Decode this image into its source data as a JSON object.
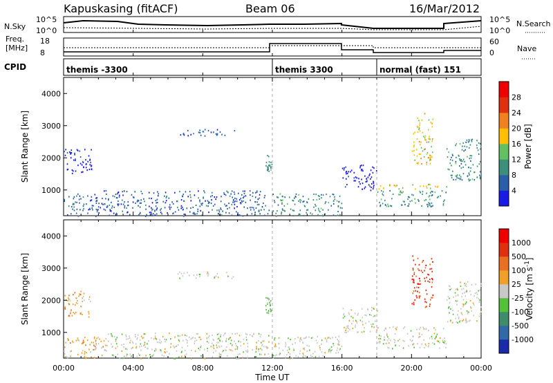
{
  "header": {
    "station": "Kapuskasing (fitACF)",
    "beam": "Beam 06",
    "date": "16/Mar/2012"
  },
  "noise_panel": {
    "left_label": "N.Sky",
    "left_ticks": [
      "10^5",
      "10^0"
    ],
    "right_label": "N.Search",
    "right_ticks": [
      "10^5",
      "10^0"
    ]
  },
  "freq_panel": {
    "left_label_1": "Freq.",
    "left_label_2": "[MHz]",
    "left_ticks": [
      "18",
      "8"
    ],
    "right_label": "Nave",
    "right_ticks": [
      "60",
      "0"
    ]
  },
  "cpid_panel": {
    "label": "CPID",
    "segments": [
      {
        "text": "themis -3300",
        "start_hour": 0.0
      },
      {
        "text": "themis 3300",
        "start_hour": 12.0
      },
      {
        "text": "normal (fast) 151",
        "start_hour": 18.0
      }
    ]
  },
  "time_axis": {
    "label": "Time UT",
    "ticks": [
      "00:00",
      "04:00",
      "08:00",
      "12:00",
      "16:00",
      "20:00",
      "00:00"
    ]
  },
  "power_panel": {
    "ylabel": "Slant Range [km]",
    "yticks": [
      "1000",
      "2000",
      "3000",
      "4000"
    ],
    "colorbar_label": "Power [dB]",
    "colorbar_ticks": [
      "4",
      "8",
      "12",
      "16",
      "20",
      "24",
      "28"
    ],
    "colors": [
      "#1a1ae6",
      "#2a5fa8",
      "#3c8f7a",
      "#62c060",
      "#ffc000",
      "#f08020",
      "#e03010",
      "#ee0000"
    ]
  },
  "velocity_panel": {
    "ylabel": "Slant Range [km]",
    "yticks": [
      "1000",
      "2000",
      "3000",
      "4000"
    ],
    "colorbar_label": "Velocity [m s",
    "colorbar_sup": "-1",
    "colorbar_ticks": [
      "1000",
      "500",
      "100",
      "25",
      "-25",
      "-100",
      "-500",
      "-1000"
    ],
    "colors": [
      "#1a2aa8",
      "#2f6aa6",
      "#3f8c6a",
      "#55c03a",
      "#c8c8c8",
      "#f0a028",
      "#e87020",
      "#e03010",
      "#ee0000"
    ]
  },
  "chart_data": {
    "type": "heatmap",
    "x_unit": "hours UT",
    "xlim": [
      0,
      24
    ],
    "ylim": [
      200,
      4500
    ],
    "mode_change_hours": [
      12,
      18
    ],
    "regions": [
      {
        "t0": 0.0,
        "t1": 2.3,
        "r0": 200,
        "r1": 900,
        "power_bin": 1,
        "velocity_bin": 5
      },
      {
        "t0": 0.0,
        "t1": 1.6,
        "r0": 1500,
        "r1": 2300,
        "power_bin": 0,
        "velocity_bin": 5
      },
      {
        "t0": 2.3,
        "t1": 11.8,
        "r0": 200,
        "r1": 1000,
        "power_bin": 1,
        "velocity_bin": 4
      },
      {
        "t0": 6.5,
        "t1": 9.8,
        "r0": 2700,
        "r1": 2900,
        "power_bin": 1,
        "velocity_bin": 4
      },
      {
        "t0": 11.6,
        "t1": 11.95,
        "r0": 1600,
        "r1": 2100,
        "power_bin": 2,
        "velocity_bin": 3
      },
      {
        "t0": 12.0,
        "t1": 16.0,
        "r0": 200,
        "r1": 900,
        "power_bin": 2,
        "velocity_bin": 4
      },
      {
        "t0": 16.0,
        "t1": 18.0,
        "r0": 1000,
        "r1": 1800,
        "power_bin": 0,
        "velocity_bin": 4
      },
      {
        "t0": 18.0,
        "t1": 22.0,
        "r0": 1050,
        "r1": 1200,
        "power_bin": 4,
        "velocity_bin": 4
      },
      {
        "t0": 18.0,
        "t1": 22.0,
        "r0": 500,
        "r1": 1000,
        "power_bin": 2,
        "velocity_bin": 4
      },
      {
        "t0": 20.0,
        "t1": 21.2,
        "r0": 1800,
        "r1": 3400,
        "power_bin": 4,
        "velocity_bin": 7
      },
      {
        "t0": 22.0,
        "t1": 24.0,
        "r0": 1300,
        "r1": 2600,
        "power_bin": 2,
        "velocity_bin": 4
      }
    ]
  }
}
